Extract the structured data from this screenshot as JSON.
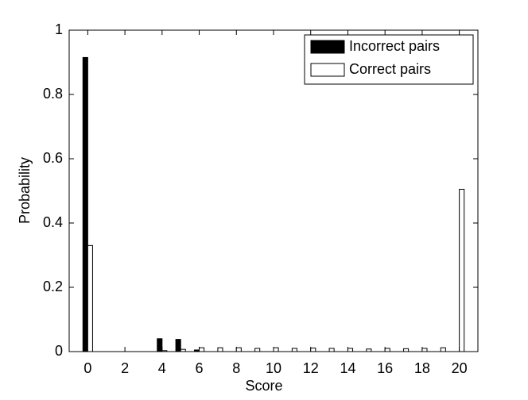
{
  "chart_data": {
    "type": "bar",
    "xlabel": "Score",
    "ylabel": "Probability",
    "x": [
      0,
      1,
      2,
      3,
      4,
      5,
      6,
      7,
      8,
      9,
      10,
      11,
      12,
      13,
      14,
      15,
      16,
      17,
      18,
      19,
      20
    ],
    "series": [
      {
        "name": "Incorrect pairs",
        "color": "#000000",
        "values": [
          0.915,
          0,
          0,
          0,
          0.04,
          0.038,
          0.005,
          0,
          0,
          0,
          0,
          0,
          0,
          0,
          0,
          0,
          0,
          0,
          0,
          0,
          0
        ]
      },
      {
        "name": "Correct pairs",
        "color": "#ffffff",
        "values": [
          0.33,
          0,
          0,
          0,
          0.003,
          0.007,
          0.012,
          0.012,
          0.012,
          0.01,
          0.012,
          0.01,
          0.011,
          0.01,
          0.01,
          0.008,
          0.01,
          0.009,
          0.01,
          0.012,
          0.505
        ]
      }
    ],
    "xlim": [
      -1,
      21
    ],
    "xticks": [
      0,
      2,
      4,
      6,
      8,
      10,
      12,
      14,
      16,
      18,
      20
    ],
    "ylim": [
      0,
      1
    ],
    "yticks": [
      0,
      0.2,
      0.4,
      0.6,
      0.8,
      1
    ],
    "legend": "upper right"
  }
}
